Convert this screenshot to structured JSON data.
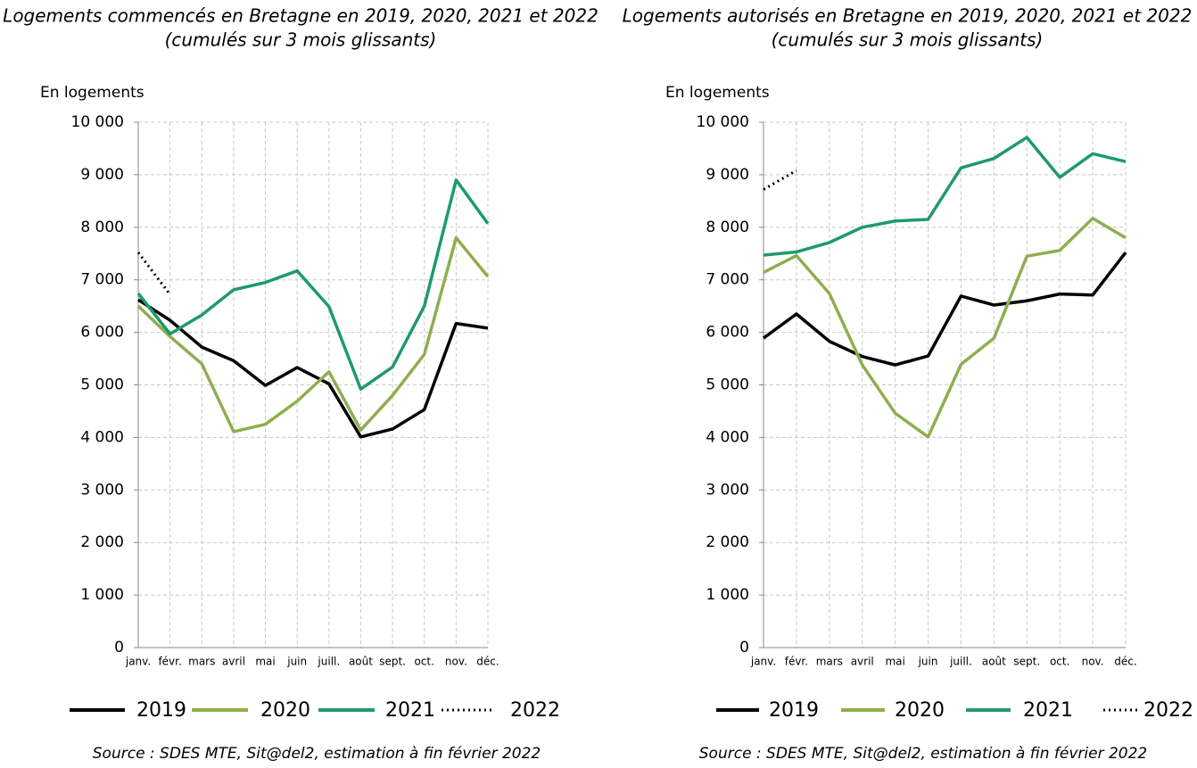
{
  "chart_data": [
    {
      "type": "line",
      "title": "Logements commencés en Bretagne en 2019, 2020, 2021 et 2022",
      "subtitle": "(cumulés sur 3 mois glissants)",
      "y_label": "En logements",
      "source": "Source : SDES MTE, Sit@del2, estimation à fin février 2022",
      "categories": [
        "janv.",
        "févr.",
        "mars",
        "avril",
        "mai",
        "juin",
        "juill.",
        "août",
        "sept.",
        "oct.",
        "nov.",
        "déc."
      ],
      "ylim": [
        0,
        10000
      ],
      "yticks": [
        0,
        {
          "value": 1000,
          "label": "1 000"
        },
        {
          "value": 2000,
          "label": "2 000"
        },
        {
          "value": 3000,
          "label": "3 000"
        },
        {
          "value": 4000,
          "label": "4 000"
        },
        {
          "value": 5000,
          "label": "5 000"
        },
        {
          "value": 6000,
          "label": "6 000"
        },
        {
          "value": 7000,
          "label": "7 000"
        },
        {
          "value": 8000,
          "label": "8 000"
        },
        {
          "value": 9000,
          "label": "9 000"
        },
        {
          "value": 10000,
          "label": "10 000"
        }
      ],
      "grid": true,
      "series": [
        {
          "name": "2019",
          "color": "#000000",
          "values": [
            6620,
            6230,
            5720,
            5460,
            4990,
            5330,
            5020,
            4010,
            4160,
            4530,
            6170,
            6080
          ]
        },
        {
          "name": "2020",
          "color": "#8fae4f",
          "values": [
            6500,
            5920,
            5400,
            4110,
            4250,
            4690,
            5250,
            4140,
            4800,
            5580,
            7800,
            7060
          ]
        },
        {
          "name": "2021",
          "color": "#1f9a6a",
          "values": [
            6740,
            5970,
            6330,
            6810,
            6950,
            7170,
            6490,
            4920,
            5340,
            6500,
            8900,
            8070
          ]
        },
        {
          "name": "2022",
          "color": "#000000",
          "dash": "dotted",
          "values": [
            7520,
            6720,
            null,
            null,
            null,
            null,
            null,
            null,
            null,
            null,
            null,
            null
          ]
        }
      ]
    },
    {
      "type": "line",
      "title": "Logements autorisés en Bretagne en 2019, 2020, 2021 et 2022",
      "subtitle": "(cumulés sur 3 mois glissants)",
      "y_label": "En logements",
      "source": "Source : SDES MTE, Sit@del2, estimation à fin février 2022",
      "categories": [
        "janv.",
        "févr.",
        "mars",
        "avril",
        "mai",
        "juin",
        "juill.",
        "août",
        "sept.",
        "oct.",
        "nov.",
        "déc."
      ],
      "ylim": [
        0,
        10000
      ],
      "yticks": [
        0,
        {
          "value": 1000,
          "label": "1 000"
        },
        {
          "value": 2000,
          "label": "2 000"
        },
        {
          "value": 3000,
          "label": "3 000"
        },
        {
          "value": 4000,
          "label": "4 000"
        },
        {
          "value": 5000,
          "label": "5 000"
        },
        {
          "value": 6000,
          "label": "6 000"
        },
        {
          "value": 7000,
          "label": "7 000"
        },
        {
          "value": 8000,
          "label": "8 000"
        },
        {
          "value": 9000,
          "label": "9 000"
        },
        {
          "value": 10000,
          "label": "10 000"
        }
      ],
      "grid": true,
      "series": [
        {
          "name": "2019",
          "color": "#000000",
          "values": [
            5890,
            6350,
            5830,
            5540,
            5380,
            5550,
            6690,
            6520,
            6600,
            6730,
            6710,
            7520
          ]
        },
        {
          "name": "2020",
          "color": "#8fae4f",
          "values": [
            7140,
            7460,
            6740,
            5380,
            4460,
            4010,
            5390,
            5890,
            7450,
            7560,
            8170,
            7800
          ]
        },
        {
          "name": "2021",
          "color": "#1f9a6a",
          "values": [
            7470,
            7530,
            7710,
            8000,
            8120,
            8150,
            9130,
            9310,
            9710,
            8950,
            9400,
            9250
          ]
        },
        {
          "name": "2022",
          "color": "#000000",
          "dash": "dotted",
          "values": [
            8720,
            9080,
            null,
            null,
            null,
            null,
            null,
            null,
            null,
            null,
            null,
            null
          ]
        }
      ]
    }
  ]
}
